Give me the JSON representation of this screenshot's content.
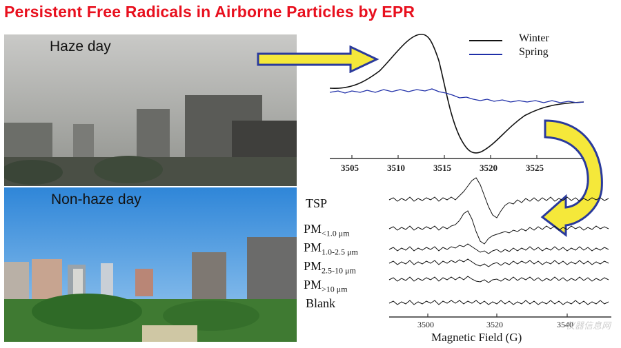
{
  "title": "Persistent Free Radicals in Airborne Particles by EPR",
  "photos": {
    "haze": {
      "label": "Haze day"
    },
    "nonhaze": {
      "label": "Non-haze day"
    }
  },
  "top_plot": {
    "legend": [
      "Winter",
      "Spring"
    ],
    "colors": {
      "winter": "#111111",
      "spring": "#1f2fa8"
    },
    "x_ticks": [
      "3505",
      "3510",
      "3515",
      "3520",
      "3525"
    ]
  },
  "bottom_plot": {
    "rows": [
      {
        "main": "TSP",
        "sub": ""
      },
      {
        "main": "PM",
        "sub": "<1.0 μm"
      },
      {
        "main": "PM",
        "sub": "1.0-2.5 μm"
      },
      {
        "main": "PM",
        "sub": "2.5-10 μm"
      },
      {
        "main": "PM",
        "sub": ">10 μm"
      },
      {
        "main": "Blank",
        "sub": ""
      }
    ],
    "x_ticks": [
      "3500",
      "3520",
      "3540"
    ],
    "axis_title": "Magnetic Field (G)"
  },
  "watermark": "仪器信息网",
  "arrows": {
    "fill": "#f5e83a",
    "stroke": "#2a3a9c"
  }
}
